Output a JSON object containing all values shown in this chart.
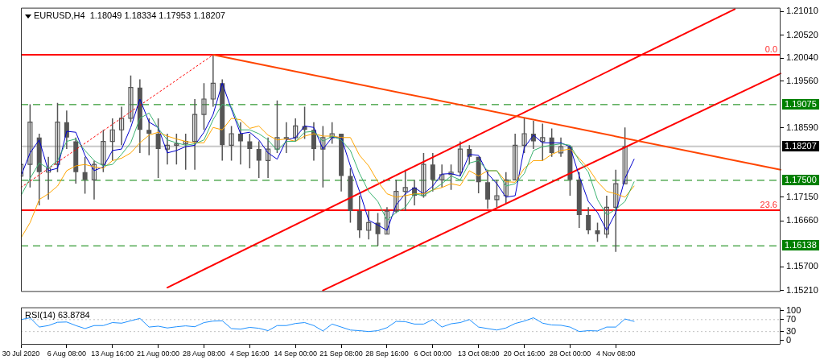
{
  "chart_data": [
    {
      "type": "candlestick",
      "title": "EURUSD,H4  1.18049 1.18334 1.17953 1.18207",
      "ylim": [
        1.1518,
        1.2109
      ],
      "categories": [
        null,
        null,
        null,
        null,
        null,
        null,
        null,
        null,
        null,
        null,
        null,
        null,
        null,
        null,
        null,
        null,
        null,
        null,
        null,
        null,
        null,
        null,
        null,
        null,
        null,
        null,
        null,
        null,
        null,
        null,
        null,
        null,
        null,
        null,
        null,
        null,
        null,
        null,
        null,
        null,
        null,
        null,
        null,
        null,
        null,
        null,
        null,
        null,
        null,
        null,
        null,
        null,
        null,
        null,
        null,
        null,
        null,
        null,
        null,
        null,
        null,
        null,
        null,
        null,
        null,
        null,
        null,
        null,
        null,
        null,
        null,
        null,
        null,
        null,
        null,
        null,
        null,
        null,
        null,
        null,
        null,
        null,
        null,
        null
      ],
      "yticks": [
        {
          "value": 1.2101,
          "label": "1.21010"
        },
        {
          "value": 1.2052,
          "label": "1.20520"
        },
        {
          "value": 1.2004,
          "label": "1.20040"
        },
        {
          "value": 1.1956,
          "label": "1.19560"
        },
        {
          "value": 1.1859,
          "label": "1.18590"
        },
        {
          "value": 1.1715,
          "label": "1.17150"
        },
        {
          "value": 1.1666,
          "label": "1.16660"
        },
        {
          "value": 1.157,
          "label": "1.15700"
        },
        {
          "value": 1.1521,
          "label": "1.15210"
        }
      ],
      "ref_lines": [
        {
          "axis": "y",
          "value": 1.2011,
          "color": "#ff0000",
          "line_style": "solid"
        },
        {
          "axis": "y",
          "value": 1.19075,
          "label": "1.19075",
          "color": "#008000",
          "line_style": "dashed"
        },
        {
          "axis": "y",
          "value": 1.18207,
          "label": "1.18207",
          "color": "#c8c8c8",
          "line_style": "solid"
        },
        {
          "axis": "y",
          "value": 1.175,
          "label": "1.17500",
          "color": "#008000",
          "line_style": "dashed"
        },
        {
          "axis": "y",
          "value": 1.1688,
          "color": "#ff0000",
          "line_style": "solid"
        },
        {
          "axis": "y",
          "value": 1.16138,
          "label": "1.16138",
          "color": "#008000",
          "line_style": "dashed"
        }
      ],
      "annotations": [
        {
          "text": "0.0",
          "y": 1.2011
        },
        {
          "text": "23.6",
          "y": 1.1688
        }
      ],
      "series": [
        {
          "type": "line",
          "color": "#3cb371",
          "values": [
            1.1718,
            1.1754,
            1.1786,
            1.1775,
            1.1791,
            1.1831,
            1.1836,
            1.1812,
            1.1791,
            1.178,
            1.1783,
            1.1804,
            1.1828,
            1.1879,
            1.189,
            1.1858,
            1.1834,
            1.1828,
            1.1823,
            1.1826,
            1.1834,
            1.1876,
            1.1908,
            1.1903,
            1.1855,
            1.1855,
            1.1847,
            1.1834,
            1.1812,
            1.1831,
            1.1831,
            1.185,
            1.1852,
            1.1831,
            1.1842,
            1.1834,
            1.1812,
            1.1764,
            1.1727,
            1.1706,
            1.1667,
            1.1683,
            1.1694,
            1.1722,
            1.1718,
            1.173,
            1.1743,
            1.1759,
            1.1751,
            1.1786,
            1.1791,
            1.177,
            1.177,
            1.1738,
            1.1743,
            1.1764,
            1.1812,
            1.182,
            1.1823,
            1.1826,
            1.1823,
            1.1791,
            1.1767,
            1.171,
            1.1678,
            1.169,
            1.1706,
            1.1747,
            null,
            null,
            null,
            null,
            null,
            null,
            null,
            null,
            null,
            null,
            null,
            null,
            null,
            null,
            null,
            null
          ]
        },
        {
          "type": "line",
          "color": "#ffa500",
          "values": [
            1.163,
            1.1662,
            1.171,
            1.1722,
            1.1738,
            1.177,
            1.178,
            1.1783,
            1.1778,
            1.1775,
            1.1791,
            1.1796,
            1.1807,
            1.1828,
            1.1844,
            1.185,
            1.1842,
            1.1836,
            1.1831,
            1.1828,
            1.1828,
            1.186,
            1.1855,
            1.1879,
            1.1876,
            1.1858,
            1.1863,
            1.1844,
            1.1834,
            1.1836,
            1.1831,
            1.1842,
            1.1847,
            1.1842,
            1.1842,
            1.1839,
            1.1839,
            1.1802,
            1.178,
            1.1747,
            1.1722,
            1.1715,
            1.1718,
            1.1722,
            1.1722,
            1.173,
            1.1735,
            1.1743,
            1.1739,
            1.177,
            1.1759,
            1.177,
            1.177,
            1.1747,
            1.1746,
            1.1775,
            1.1791,
            1.1791,
            1.1804,
            1.1812,
            1.1815,
            1.1796,
            1.1775,
            1.1747,
            1.1727,
            1.1722,
            1.1715,
            1.1738,
            null,
            null,
            null,
            null,
            null,
            null,
            null,
            null,
            null,
            null,
            null,
            null,
            null,
            null,
            null,
            null
          ]
        },
        {
          "type": "line",
          "color": "#0000cd",
          "values": [
            1.1759,
            1.1807,
            1.1834,
            1.177,
            1.1775,
            1.1852,
            1.185,
            1.1802,
            1.177,
            1.1778,
            1.1812,
            1.1815,
            1.186,
            1.1919,
            1.1871,
            1.186,
            1.1807,
            1.1812,
            1.182,
            1.1823,
            1.185,
            1.1887,
            1.1952,
            1.1898,
            1.1847,
            1.185,
            1.1834,
            1.1807,
            1.1794,
            1.1834,
            1.1839,
            1.1863,
            1.186,
            1.1815,
            1.1839,
            1.1839,
            1.178,
            1.1727,
            1.1667,
            1.1657,
            1.1646,
            1.1699,
            1.1722,
            1.1735,
            1.1722,
            1.1738,
            1.1763,
            1.1764,
            1.1759,
            1.1804,
            1.1802,
            1.1764,
            1.1743,
            1.1715,
            1.1718,
            1.1818,
            1.1844,
            1.1828,
            1.1828,
            1.1828,
            1.182,
            1.1759,
            1.1706,
            1.1683,
            1.1646,
            1.1683,
            1.1754,
            1.1794,
            null,
            null,
            null,
            null,
            null,
            null,
            null,
            null,
            null,
            null,
            null,
            null,
            null,
            null,
            null,
            null
          ]
        },
        {
          "type": "line",
          "color": "#ff0000",
          "line_style": "dotted",
          "values": [
            1.1735,
            null,
            null,
            null,
            null,
            null,
            null,
            null,
            null,
            null,
            null,
            null,
            null,
            null,
            null,
            null,
            null,
            null,
            null,
            null,
            null,
            1.2011,
            null,
            null,
            null,
            null,
            null,
            null,
            null,
            null,
            null,
            null,
            null,
            null,
            null,
            null,
            null,
            null,
            null,
            null,
            null,
            null,
            null,
            null,
            null,
            null,
            null,
            null,
            null,
            null,
            null,
            null,
            null,
            null,
            null,
            null,
            null,
            null,
            null,
            null,
            null,
            null,
            null,
            null,
            null,
            null,
            null,
            null,
            null,
            null,
            null,
            null,
            null,
            null,
            null,
            null,
            null,
            null,
            null,
            null,
            null,
            null,
            null,
            null
          ]
        },
        {
          "type": "line",
          "color": "#ff4500",
          "values": [
            null,
            null,
            null,
            null,
            null,
            null,
            null,
            null,
            null,
            null,
            null,
            null,
            null,
            null,
            null,
            null,
            null,
            null,
            null,
            null,
            null,
            1.2011,
            null,
            null,
            null,
            null,
            null,
            null,
            null,
            null,
            null,
            null,
            null,
            null,
            null,
            null,
            null,
            null,
            null,
            null,
            null,
            null,
            null,
            null,
            null,
            null,
            null,
            null,
            null,
            null,
            null,
            null,
            null,
            null,
            null,
            null,
            null,
            null,
            null,
            null,
            null,
            null,
            null,
            null,
            null,
            null,
            null,
            null,
            null,
            null,
            null,
            null,
            null,
            null,
            null,
            null,
            null,
            null,
            null,
            null,
            null,
            null,
            null,
            1.1772
          ]
        },
        {
          "type": "line",
          "color": "#ff0000",
          "values": [
            null,
            null,
            null,
            null,
            null,
            null,
            null,
            null,
            null,
            null,
            null,
            null,
            null,
            null,
            null,
            null,
            1.1527,
            null,
            null,
            null,
            null,
            null,
            null,
            null,
            null,
            null,
            null,
            null,
            null,
            null,
            null,
            null,
            null,
            null,
            null,
            null,
            null,
            null,
            null,
            null,
            null,
            null,
            null,
            null,
            null,
            null,
            null,
            null,
            null,
            null,
            null,
            null,
            null,
            null,
            null,
            null,
            null,
            null,
            null,
            null,
            null,
            null,
            null,
            null,
            null,
            null,
            null,
            null,
            null,
            null,
            null,
            null,
            null,
            null,
            null,
            null,
            null,
            null,
            1.2106,
            null,
            null,
            null,
            null,
            null
          ]
        },
        {
          "type": "line",
          "color": "#ff0000",
          "values": [
            null,
            null,
            null,
            null,
            null,
            null,
            null,
            null,
            null,
            null,
            null,
            null,
            null,
            null,
            null,
            null,
            null,
            null,
            null,
            null,
            null,
            null,
            null,
            null,
            null,
            null,
            null,
            null,
            null,
            null,
            null,
            null,
            null,
            1.1521,
            null,
            null,
            null,
            null,
            null,
            null,
            null,
            null,
            null,
            null,
            null,
            null,
            null,
            null,
            null,
            null,
            null,
            null,
            null,
            null,
            null,
            null,
            null,
            null,
            null,
            null,
            null,
            null,
            null,
            null,
            null,
            null,
            null,
            null,
            null,
            null,
            null,
            null,
            null,
            null,
            null,
            null,
            null,
            null,
            null,
            null,
            null,
            null,
            null,
            1.1972
          ]
        },
        {
          "color": "#555555",
          "ohlc": [
            [
              1.1759,
              1.1791,
              1.1727,
              1.1783
            ],
            [
              1.1783,
              1.1908,
              1.1735,
              1.1871
            ],
            [
              1.1839,
              1.1847,
              1.1698,
              1.1767
            ],
            [
              1.1767,
              1.1799,
              1.171,
              1.1775
            ],
            [
              1.1783,
              1.1911,
              1.1767,
              1.1871
            ],
            [
              1.1871,
              1.1895,
              1.1815,
              1.1839
            ],
            [
              1.1831,
              1.1839,
              1.1743,
              1.1767
            ],
            [
              1.1767,
              1.1799,
              1.1722,
              1.1751
            ],
            [
              1.1751,
              1.1791,
              1.171,
              1.1783
            ],
            [
              1.1783,
              1.1855,
              1.1767,
              1.1831
            ],
            [
              1.1831,
              1.1879,
              1.1791,
              1.1855
            ],
            [
              1.1855,
              1.1903,
              1.1823,
              1.1879
            ],
            [
              1.1879,
              1.1968,
              1.1871,
              1.1943
            ],
            [
              1.1943,
              1.196,
              1.1807,
              1.1855
            ],
            [
              1.1855,
              1.1879,
              1.1802,
              1.1847
            ],
            [
              1.1847,
              1.1879,
              1.1755,
              1.1815
            ],
            [
              1.1815,
              1.1847,
              1.1783,
              1.1823
            ],
            [
              1.1823,
              1.1847,
              1.1783,
              1.1826
            ],
            [
              1.1826,
              1.1847,
              1.1772,
              1.1831
            ],
            [
              1.1831,
              1.1919,
              1.1772,
              1.1887
            ],
            [
              1.1887,
              1.1952,
              1.1855,
              1.1919
            ],
            [
              1.1919,
              1.2011,
              1.1903,
              1.1952
            ],
            [
              1.1952,
              1.196,
              1.1791,
              1.1823
            ],
            [
              1.1823,
              1.1863,
              1.1791,
              1.1847
            ],
            [
              1.1847,
              1.1871,
              1.1783,
              1.1831
            ],
            [
              1.1831,
              1.1847,
              1.1775,
              1.1815
            ],
            [
              1.1815,
              1.1831,
              1.1755,
              1.1791
            ],
            [
              1.1791,
              1.1839,
              1.1755,
              1.1815
            ],
            [
              1.1815,
              1.1916,
              1.1807,
              1.1839
            ],
            [
              1.1839,
              1.1871,
              1.1807,
              1.1839
            ],
            [
              1.1839,
              1.1879,
              1.1831,
              1.1863
            ],
            [
              1.1863,
              1.1903,
              1.1836,
              1.1855
            ],
            [
              1.1855,
              1.1871,
              1.1791,
              1.1815
            ],
            [
              1.1815,
              1.1863,
              1.1735,
              1.1839
            ],
            [
              1.1839,
              1.1871,
              1.1826,
              1.1847
            ],
            [
              1.1847,
              1.1847,
              1.1727,
              1.1759
            ],
            [
              1.1759,
              1.1775,
              1.1662,
              1.1686
            ],
            [
              1.1686,
              1.1718,
              1.163,
              1.1646
            ],
            [
              1.1646,
              1.1686,
              1.1627,
              1.1662
            ],
            [
              1.1662,
              1.1682,
              1.1614,
              1.1638
            ],
            [
              1.1638,
              1.1694,
              1.1638,
              1.1686
            ],
            [
              1.1686,
              1.1751,
              1.1682,
              1.1727
            ],
            [
              1.1727,
              1.1772,
              1.1686,
              1.1735
            ],
            [
              1.1735,
              1.1751,
              1.1698,
              1.1718
            ],
            [
              1.1718,
              1.1807,
              1.1714,
              1.1783
            ],
            [
              1.1783,
              1.1807,
              1.1727,
              1.1751
            ],
            [
              1.1751,
              1.1783,
              1.1735,
              1.1762
            ],
            [
              1.1762,
              1.1783,
              1.173,
              1.1767
            ],
            [
              1.1767,
              1.1831,
              1.1759,
              1.1815
            ],
            [
              1.1815,
              1.1823,
              1.1783,
              1.1799
            ],
            [
              1.1799,
              1.1799,
              1.1723,
              1.1746
            ],
            [
              1.1746,
              1.1772,
              1.1691,
              1.171
            ],
            [
              1.171,
              1.1751,
              1.1694,
              1.1718
            ],
            [
              1.1718,
              1.1767,
              1.1702,
              1.1751
            ],
            [
              1.1751,
              1.1847,
              1.1751,
              1.1823
            ],
            [
              1.1823,
              1.1879,
              1.1807,
              1.1847
            ],
            [
              1.1847,
              1.1874,
              1.1815,
              1.1831
            ],
            [
              1.1831,
              1.1868,
              1.1791,
              1.1839
            ],
            [
              1.1839,
              1.1858,
              1.1799,
              1.1807
            ],
            [
              1.1807,
              1.1839,
              1.1799,
              1.182
            ],
            [
              1.182,
              1.1823,
              1.1718,
              1.1751
            ],
            [
              1.1751,
              1.1767,
              1.1651,
              1.1678
            ],
            [
              1.1678,
              1.1694,
              1.1638,
              1.1646
            ],
            [
              1.1646,
              1.1662,
              1.1622,
              1.1638
            ],
            [
              1.1638,
              1.1718,
              1.163,
              1.1694
            ],
            [
              1.1694,
              1.1772,
              1.1601,
              1.1743
            ],
            [
              1.1743,
              1.186,
              1.1743,
              1.182
            ],
            null,
            null,
            null,
            null,
            null,
            null,
            null,
            null,
            null,
            null,
            null,
            null,
            null,
            null,
            null,
            null,
            null
          ]
        }
      ]
    },
    {
      "type": "line",
      "title": "RSI(14) 63.8784",
      "ylim": [
        -14,
        111
      ],
      "yticks": [
        0,
        30,
        70,
        100
      ],
      "categories": [
        "30 Jul 2020",
        null,
        null,
        null,
        null,
        "6 Aug 08:00",
        null,
        null,
        null,
        null,
        "13 Aug 16:00",
        null,
        null,
        null,
        null,
        "21 Aug 00:00",
        null,
        null,
        null,
        null,
        "28 Aug 08:00",
        null,
        null,
        null,
        null,
        "4 Sep 16:00",
        null,
        null,
        null,
        null,
        "14 Sep 00:00",
        null,
        null,
        null,
        null,
        "21 Sep 08:00",
        null,
        null,
        null,
        null,
        "28 Sep 16:00",
        null,
        null,
        null,
        null,
        "6 Oct 00:00",
        null,
        null,
        null,
        null,
        "13 Oct 08:00",
        null,
        null,
        null,
        null,
        "20 Oct 16:00",
        null,
        null,
        null,
        null,
        "28 Oct 00:00",
        null,
        null,
        null,
        null,
        "4 Nov 08:00",
        null,
        null,
        null,
        null,
        null,
        null,
        null,
        null,
        null,
        null,
        null,
        null,
        null,
        null,
        null,
        null,
        null,
        null
      ],
      "ref_lines": [
        {
          "axis": "y",
          "value": 70,
          "color": "#c0c0c0",
          "line_style": "dotted"
        },
        {
          "axis": "y",
          "value": 30,
          "color": "#c0c0c0",
          "line_style": "dotted"
        }
      ],
      "series": [
        {
          "color": "#1e90ff",
          "values": [
            70,
            76,
            45,
            50,
            61,
            62,
            50,
            40,
            50,
            50,
            60,
            58,
            66,
            74,
            45,
            48,
            42,
            46,
            49,
            46,
            60,
            65,
            66,
            40,
            38,
            44,
            41,
            33,
            50,
            50,
            57,
            60,
            50,
            32,
            55,
            45,
            35,
            33,
            30,
            33,
            43,
            64,
            63,
            55,
            55,
            70,
            45,
            56,
            60,
            70,
            45,
            40,
            35,
            42,
            57,
            65,
            76,
            58,
            52,
            51,
            45,
            30,
            33,
            32,
            45,
            45,
            72,
            64,
            null,
            null,
            null,
            null,
            null,
            null,
            null,
            null,
            null,
            null,
            null,
            null,
            null,
            null,
            null,
            null
          ]
        }
      ]
    }
  ]
}
